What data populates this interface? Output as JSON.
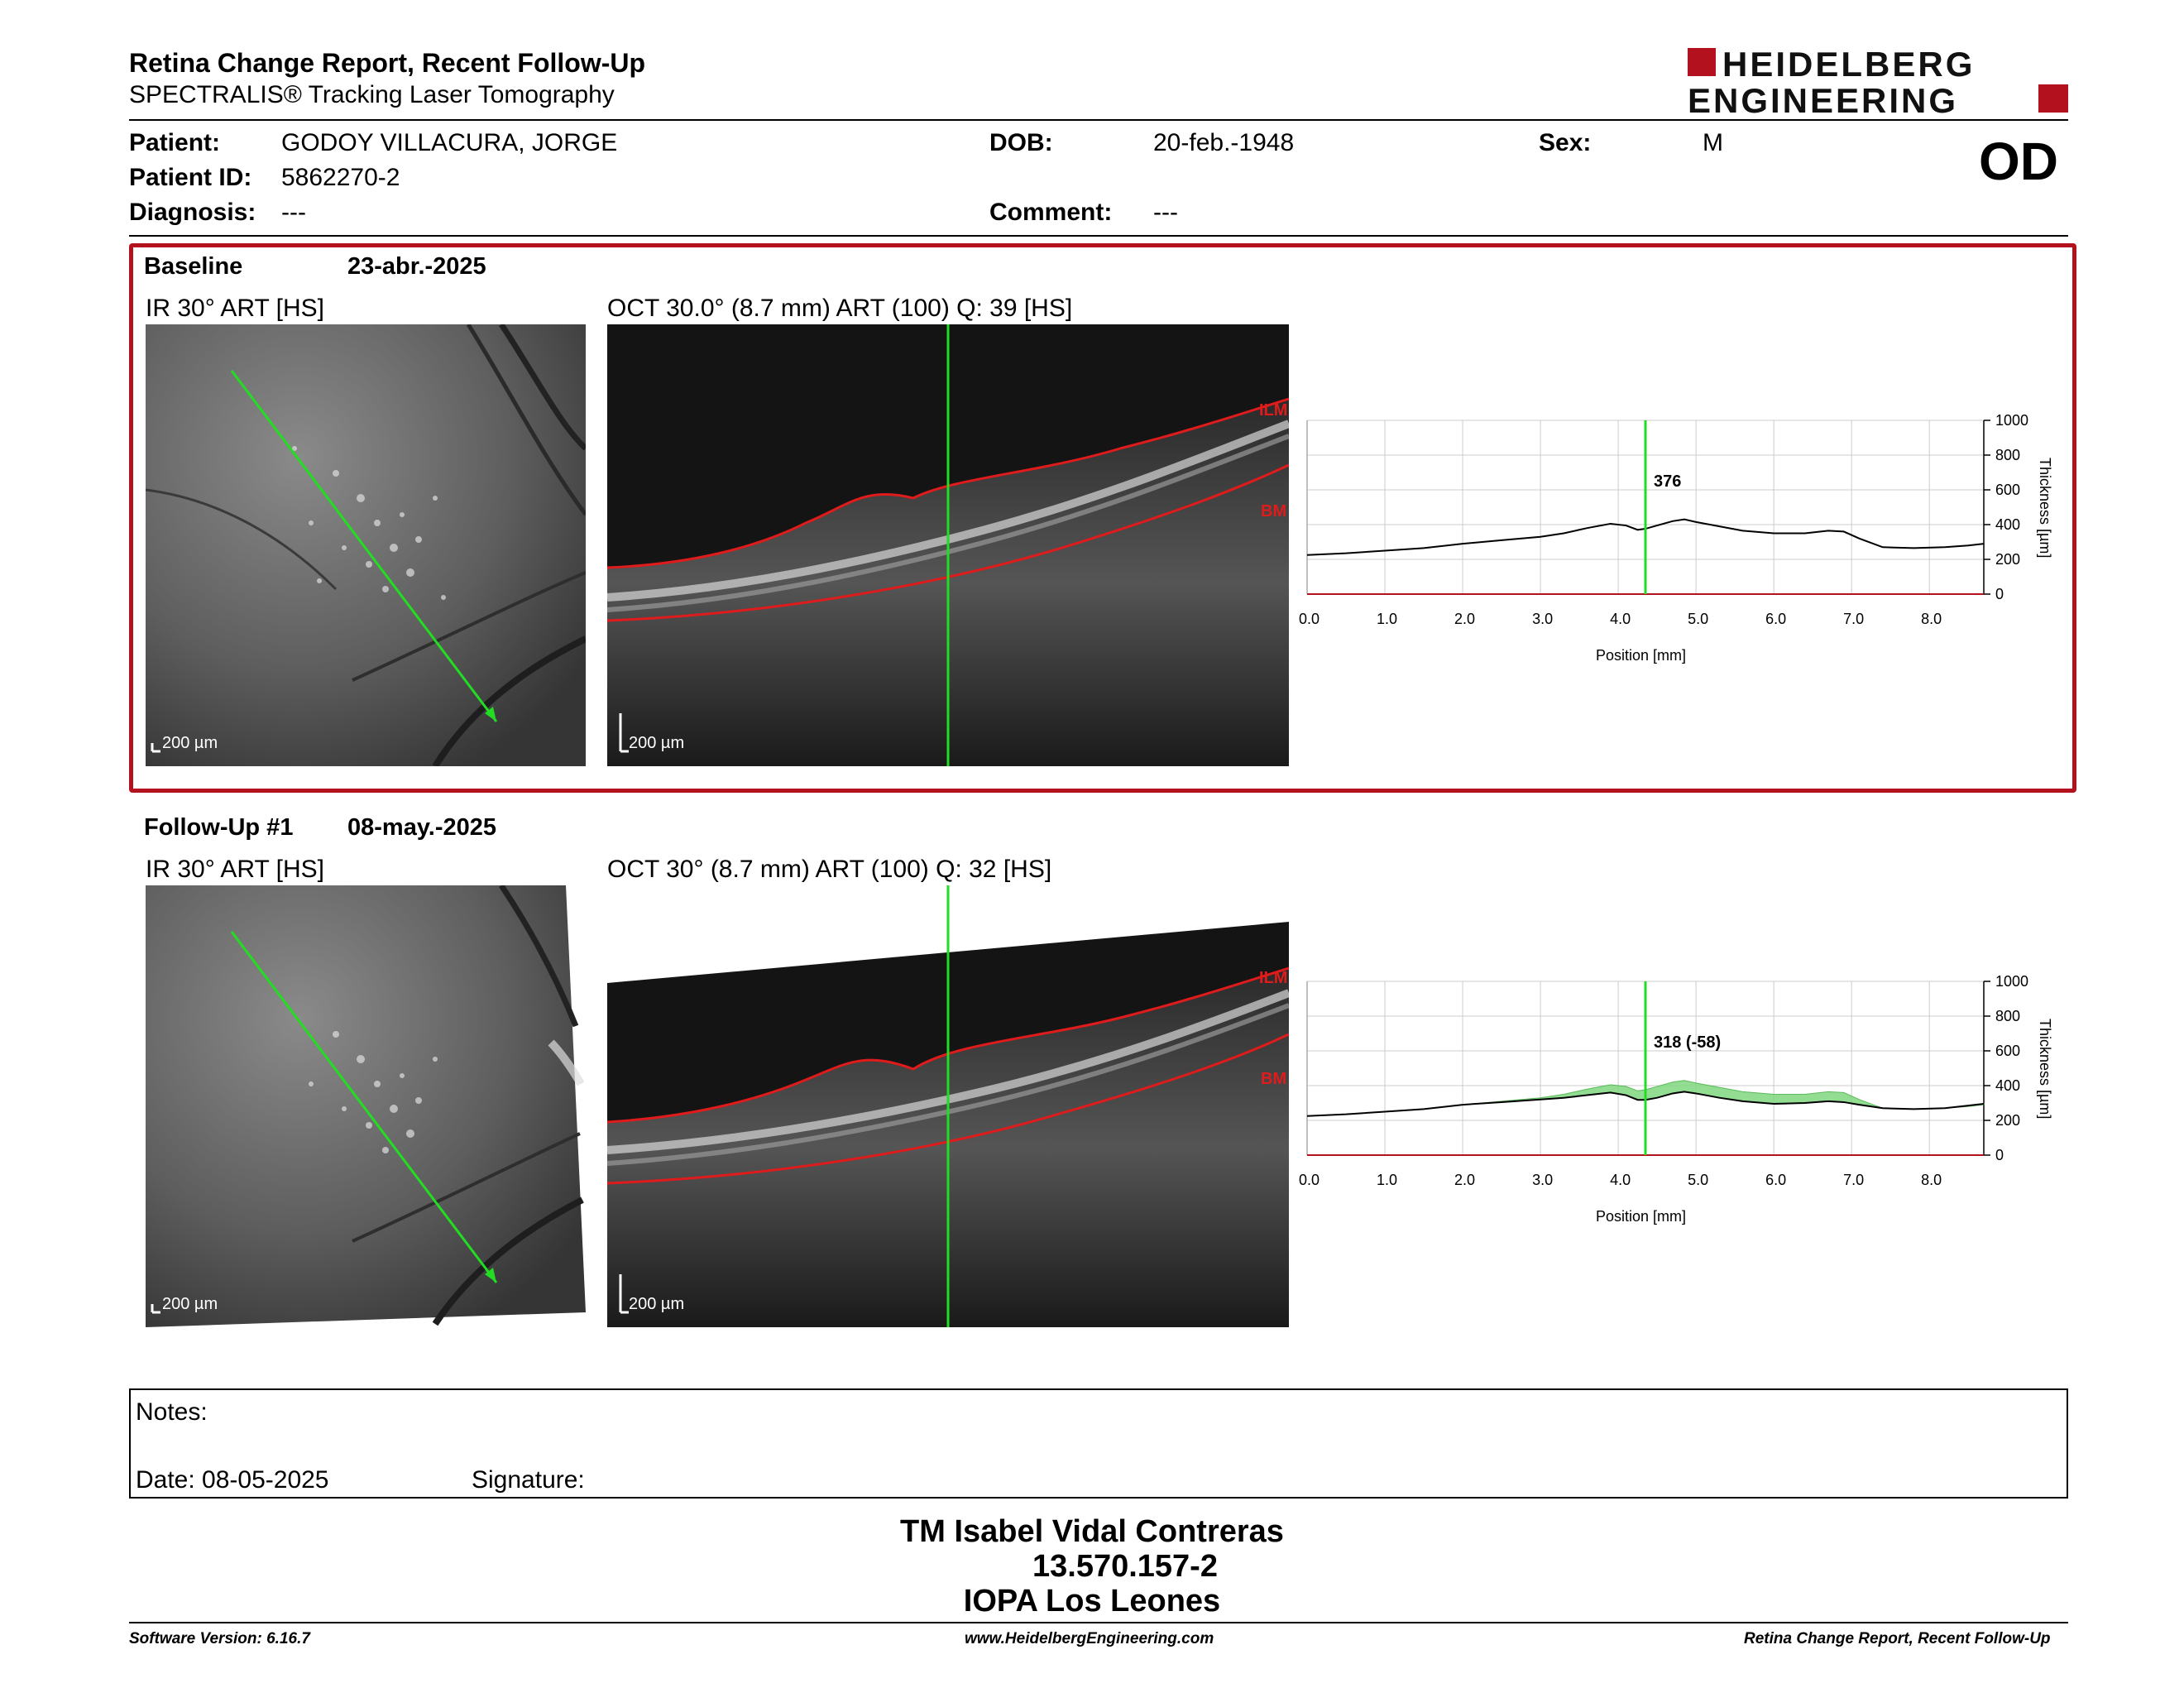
{
  "header": {
    "title": "Retina Change Report, Recent Follow-Up",
    "subtitle": "SPECTRALIS® Tracking Laser Tomography",
    "logo_line1": "HEIDELBERG",
    "logo_line2": "ENGINEERING"
  },
  "patient": {
    "patient_label": "Patient:",
    "patient_name": "GODOY  VILLACURA, JORGE",
    "id_label": "Patient ID:",
    "id_value": "5862270-2",
    "diagnosis_label": "Diagnosis:",
    "diagnosis_value": "---",
    "dob_label": "DOB:",
    "dob_value": "20-feb.-1948",
    "comment_label": "Comment:",
    "comment_value": "---",
    "sex_label": "Sex:",
    "sex_value": "M",
    "eye": "OD"
  },
  "baseline": {
    "label": "Baseline",
    "date": "23-abr.-2025",
    "ir_label": "IR 30° ART [HS]",
    "oct_label": "OCT 30.0° (8.7 mm) ART (100) Q: 39 [HS]",
    "ir_scale": "200 µm",
    "oct_scale": "200 µm",
    "ilm": "ILM",
    "bm": "BM"
  },
  "followup": {
    "label": "Follow-Up #1",
    "date": "08-may.-2025",
    "ir_label": "IR 30° ART [HS]",
    "oct_label": "OCT 30° (8.7 mm) ART (100) Q: 32 [HS]",
    "ir_scale": "200 µm",
    "oct_scale": "200 µm",
    "ilm": "ILM",
    "bm": "BM"
  },
  "notes": {
    "notes_label": "Notes:",
    "date_label": "Date: 08-05-2025",
    "signature_label": "Signature:"
  },
  "signer": {
    "name": "TM Isabel Vidal Contreras",
    "rut": "13.570.157-2",
    "institution": "IOPA Los Leones"
  },
  "footer": {
    "software": "Software Version: 6.16.7",
    "website": "www.HeidelbergEngineering.com",
    "report": "Retina Change Report, Recent Follow-Up"
  },
  "colors": {
    "accent_red": "#b3111e",
    "scan_green": "#22dd22",
    "change_fill": "#7fd87f"
  },
  "chart_data": [
    {
      "type": "line",
      "title": "",
      "xlabel": "Position [mm]",
      "ylabel": "Thickness [µm]",
      "xlim": [
        0,
        8.7
      ],
      "ylim": [
        0,
        1000
      ],
      "xticks": [
        "0.0",
        "1.0",
        "2.0",
        "3.0",
        "4.0",
        "5.0",
        "6.0",
        "7.0",
        "8.0"
      ],
      "yticks": [
        "0",
        "200",
        "400",
        "600",
        "800",
        "1000"
      ],
      "cursor_x": 4.35,
      "cursor_label": "376",
      "grid": true,
      "series": [
        {
          "x": [
            0,
            0.5,
            1,
            1.5,
            2,
            2.5,
            3,
            3.3,
            3.6,
            3.9,
            4.1,
            4.25,
            4.35,
            4.5,
            4.7,
            4.85,
            5.0,
            5.3,
            5.6,
            6.0,
            6.4,
            6.7,
            6.9,
            7.1,
            7.4,
            7.8,
            8.2,
            8.5,
            8.7
          ],
          "y": [
            225,
            235,
            250,
            265,
            290,
            310,
            330,
            350,
            380,
            405,
            395,
            370,
            376,
            395,
            420,
            430,
            415,
            390,
            365,
            350,
            350,
            365,
            360,
            320,
            270,
            265,
            270,
            280,
            290
          ]
        }
      ]
    },
    {
      "type": "line",
      "title": "",
      "xlabel": "Position [mm]",
      "ylabel": "Thickness [µm]",
      "xlim": [
        0,
        8.7
      ],
      "ylim": [
        0,
        1000
      ],
      "xticks": [
        "0.0",
        "1.0",
        "2.0",
        "3.0",
        "4.0",
        "5.0",
        "6.0",
        "7.0",
        "8.0"
      ],
      "yticks": [
        "0",
        "200",
        "400",
        "600",
        "800",
        "1000"
      ],
      "cursor_x": 4.35,
      "cursor_label": "318 (-58)",
      "grid": true,
      "series": [
        {
          "x": [
            0,
            0.5,
            1,
            1.5,
            2,
            2.5,
            3,
            3.3,
            3.6,
            3.9,
            4.1,
            4.25,
            4.35,
            4.5,
            4.7,
            4.85,
            5.0,
            5.3,
            5.6,
            6.0,
            6.4,
            6.7,
            6.9,
            7.1,
            7.4,
            7.8,
            8.2,
            8.5,
            8.7
          ],
          "y": [
            225,
            235,
            250,
            265,
            290,
            305,
            320,
            330,
            345,
            360,
            345,
            318,
            318,
            330,
            355,
            365,
            355,
            330,
            310,
            295,
            300,
            310,
            305,
            290,
            270,
            265,
            270,
            285,
            295
          ]
        }
      ],
      "baseline_reference": [
        225,
        235,
        250,
        265,
        290,
        310,
        330,
        350,
        380,
        405,
        395,
        370,
        376,
        395,
        420,
        430,
        415,
        390,
        365,
        350,
        350,
        365,
        360,
        320,
        270,
        265,
        270,
        280,
        290
      ]
    }
  ]
}
